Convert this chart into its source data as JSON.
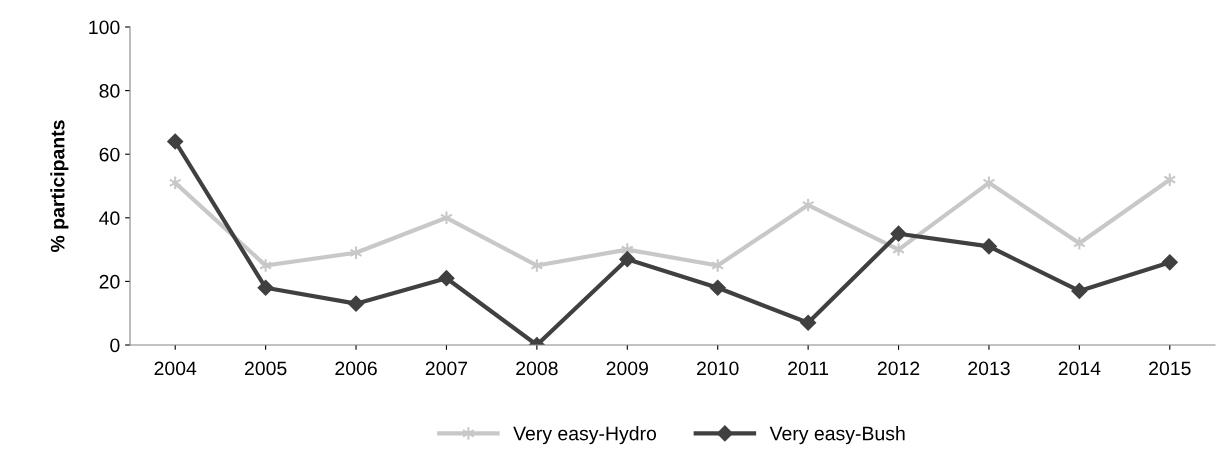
{
  "chart_data": {
    "type": "line",
    "ylabel": "% participants",
    "categories": [
      "2004",
      "2005",
      "2006",
      "2007",
      "2008",
      "2009",
      "2010",
      "2011",
      "2012",
      "2013",
      "2014",
      "2015"
    ],
    "series": [
      {
        "name": "Very easy-Hydro",
        "color": "#c8c8c8",
        "marker": "cross",
        "values": [
          51,
          25,
          29,
          40,
          25,
          30,
          25,
          44,
          30,
          51,
          32,
          52
        ]
      },
      {
        "name": "Very easy-Bush",
        "color": "#404040",
        "marker": "diamond",
        "values": [
          64,
          18,
          13,
          21,
          0,
          27,
          18,
          7,
          35,
          31,
          17,
          26
        ]
      }
    ],
    "ylim": [
      0,
      100
    ],
    "yticks": [
      0,
      20,
      40,
      60,
      80,
      100
    ],
    "grid": false,
    "legend": "bottom",
    "line_style": "solid"
  }
}
